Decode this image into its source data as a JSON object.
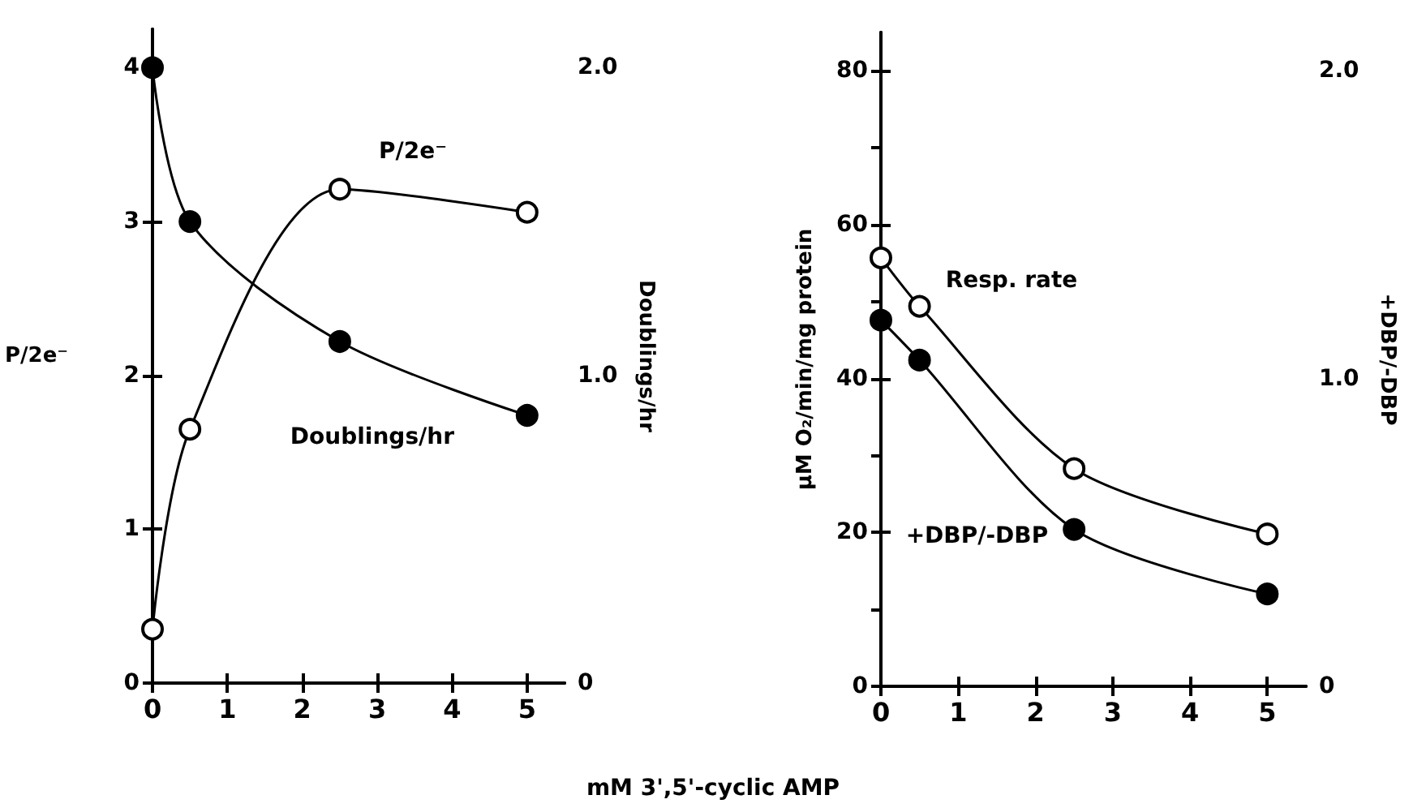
{
  "chart_data": [
    {
      "type": "line",
      "xlabel": "mM 3',5'-cyclic AMP",
      "ylabel": "P/2e⁻",
      "y2label": "Doublings/hr",
      "x": [
        0,
        0.5,
        2.5,
        5
      ],
      "xlim": [
        0,
        5.5
      ],
      "xticks": [
        0,
        1,
        2,
        3,
        4,
        5
      ],
      "ylim": [
        0,
        4.25
      ],
      "yticks": [
        0,
        1,
        2,
        3,
        4
      ],
      "y2lim": [
        0,
        2.125
      ],
      "y2ticks": [
        0,
        {
          "value": 0.5,
          "label": null
        },
        {
          "value": 1.0,
          "label": "1.0"
        },
        {
          "value": 1.5,
          "label": null
        },
        {
          "value": 2.0,
          "label": "2.0"
        }
      ],
      "grid": false,
      "legend": false,
      "series": [
        {
          "name": "P/2e⁻",
          "color": "#000000",
          "marker": "circle-open",
          "values": [
            0.35,
            1.65,
            3.21,
            3.06
          ]
        },
        {
          "name": "Doublings/hr",
          "color": "#000000",
          "marker": "circle",
          "axis": "y2",
          "values": [
            2.0,
            1.5,
            1.11,
            0.87
          ]
        }
      ]
    },
    {
      "type": "line",
      "ylabel": "μM O₂/min/mg protein",
      "y2label": "+DBP/-DBP",
      "x": [
        0,
        0.5,
        2.5,
        5
      ],
      "xlim": [
        0,
        5.5
      ],
      "xticks": [
        0,
        1,
        2,
        3,
        4,
        5
      ],
      "ylim": [
        0,
        85
      ],
      "yticks": [
        0,
        {
          "value": 10,
          "label": null
        },
        20,
        {
          "value": 30,
          "label": null
        },
        40,
        {
          "value": 50,
          "label": null
        },
        60,
        {
          "value": 70,
          "label": null
        },
        80
      ],
      "y2lim": [
        0,
        2.125
      ],
      "y2ticks": [
        0,
        {
          "value": 0.5,
          "label": null
        },
        {
          "value": 1.0,
          "label": "1.0"
        },
        {
          "value": 1.5,
          "label": null
        },
        {
          "value": 2.0,
          "label": "2.0"
        }
      ],
      "grid": false,
      "legend": false,
      "series": [
        {
          "name": "Resp. rate",
          "color": "#000000",
          "marker": "circle-open",
          "values": [
            55.7,
            49.4,
            28.3,
            19.8
          ]
        },
        {
          "name": "+DBP/-DBP",
          "color": "#000000",
          "marker": "circle",
          "axis": "y2",
          "values": [
            1.19,
            1.06,
            0.51,
            0.3
          ]
        }
      ]
    }
  ]
}
